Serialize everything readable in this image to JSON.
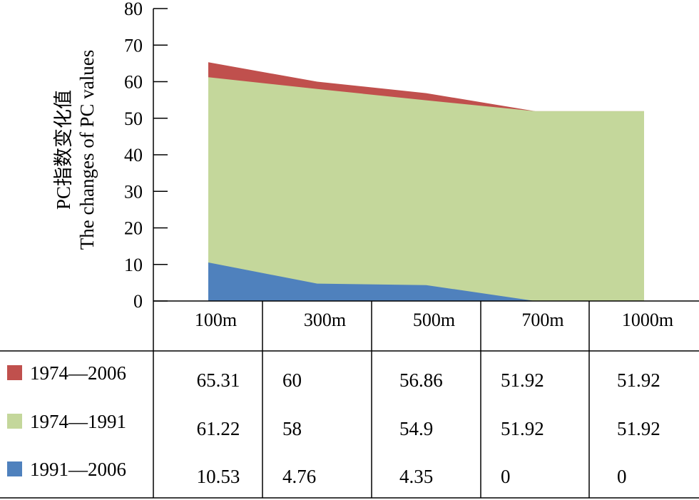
{
  "chart_data": {
    "type": "area",
    "ylabel_cn": "PC指数变化值",
    "ylabel_en": "The changes of PC values",
    "ylim": [
      0,
      80
    ],
    "yticks": [
      "0",
      "10",
      "20",
      "30",
      "40",
      "50",
      "60",
      "70",
      "80"
    ],
    "categories": [
      "100m",
      "300m",
      "500m",
      "700m",
      "1000m"
    ],
    "series": [
      {
        "name": "1974—2006",
        "color": "#c0504d",
        "values": [
          65.31,
          60,
          56.86,
          51.92,
          51.92
        ],
        "display": [
          "65.31",
          "60",
          "56.86",
          "51.92",
          "51.92"
        ]
      },
      {
        "name": "1974—1991",
        "color": "#c4d79b",
        "values": [
          61.22,
          58,
          54.9,
          51.92,
          51.92
        ],
        "display": [
          "61.22",
          "58",
          "54.9",
          "51.92",
          "51.92"
        ]
      },
      {
        "name": "1991—2006",
        "color": "#4f81bd",
        "values": [
          10.53,
          4.76,
          4.35,
          0,
          0
        ],
        "display": [
          "10.53",
          "4.76",
          "4.35",
          "0",
          "0"
        ]
      }
    ],
    "grid": false,
    "legend": "data table rows"
  }
}
